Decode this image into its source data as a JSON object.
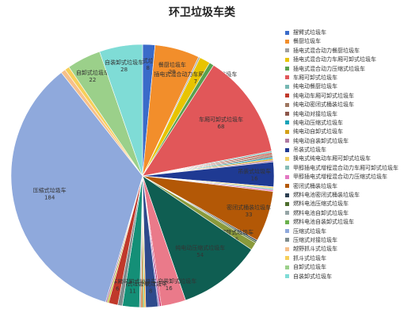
{
  "chart_data": {
    "type": "pie",
    "title": "环卫垃圾车类",
    "legend_position": "right",
    "slices": [
      {
        "name": "摆臂式垃圾车",
        "value": 8,
        "color": "#3a6bc9"
      },
      {
        "name": "餐厨垃圾车",
        "value": 29,
        "color": "#f28e2b"
      },
      {
        "name": "插电式混合动力餐厨垃圾车",
        "value": 1,
        "color": "#a0a0a0"
      },
      {
        "name": "插电式混合动力车厢可卸式垃圾车",
        "value": 7,
        "color": "#e8c400"
      },
      {
        "name": "插电式混合动力压缩式垃圾车",
        "value": 3,
        "color": "#59a14f"
      },
      {
        "name": "车厢可卸式垃圾车",
        "value": 68,
        "color": "#e15759"
      },
      {
        "name": "纯电动餐厨垃圾车",
        "value": 1,
        "color": "#76b7b2"
      },
      {
        "name": "纯电动车厢可卸式垃圾车",
        "value": 1,
        "color": "#c0392b"
      },
      {
        "name": "纯电动密闭式桶装垃圾车",
        "value": 1,
        "color": "#9d7660"
      },
      {
        "name": "纯电动对接垃圾车",
        "value": 1,
        "color": "#8c564b"
      },
      {
        "name": "纯电动压缩式垃圾车",
        "value": 1,
        "color": "#17a2b8"
      },
      {
        "name": "纯电动自卸式垃圾车",
        "value": 1,
        "color": "#d4a017"
      },
      {
        "name": "纯电动自装卸式垃圾车",
        "value": 1,
        "color": "#b07aa1"
      },
      {
        "name": "吊装式垃圾车",
        "value": 16,
        "color": "#1f3a93"
      },
      {
        "name": "换电式纯电动车厢可卸式垃圾车",
        "value": 1,
        "color": "#f1ce63"
      },
      {
        "name": "甲醇插电式增程混合动力车厢可卸式垃圾车",
        "value": 1,
        "color": "#86bcb6"
      },
      {
        "name": "甲醇插电式增程混合动力压缩式垃圾车",
        "value": 1,
        "color": "#e377c2"
      },
      {
        "name": "密闭式桶装垃圾车",
        "value": 33,
        "color": "#b35806"
      },
      {
        "name": "燃料电池密闭式桶装垃圾车",
        "value": 1,
        "color": "#2c3e50"
      },
      {
        "name": "燃料电池压缩式垃圾车",
        "value": 1,
        "color": "#4e6e2e"
      },
      {
        "name": "摆臂式垃圾车",
        "value": 5,
        "color": "#8a9a3b"
      },
      {
        "name": "纯电动压缩式垃圾车",
        "value": 54,
        "color": "#0f5e52"
      },
      {
        "name": "纯电动自装卸式垃圾车",
        "value": 16,
        "color": "#ea7a8a"
      },
      {
        "name": "纯电动自卸式垃圾车",
        "value": 1,
        "color": "#c2185b"
      },
      {
        "name": "车厢可卸式垃圾车",
        "value": 1,
        "color": "#9467bd"
      },
      {
        "name": "压缩式垃圾车",
        "value": 8,
        "color": "#2e4a8c"
      },
      {
        "name": "吊装式垃圾车",
        "value": 1,
        "color": "#f5a623"
      },
      {
        "name": "燃料电池自装卸式垃圾车",
        "value": 1,
        "color": "#6ab04c"
      },
      {
        "name": "燃料电池压缩式垃圾车",
        "value": 1,
        "color": "#d35400"
      },
      {
        "name": "燃料电池自卸式垃圾车",
        "value": 1,
        "color": "#95a5a6"
      },
      {
        "name": "压缩式垃圾车",
        "value": 11,
        "color": "#148f77"
      },
      {
        "name": "压缩式对接垃圾车",
        "value": 3,
        "color": "#7f8c8d"
      },
      {
        "name": "换电式纯电动车厢可卸式垃圾车",
        "value": 6,
        "color": "#c0392b"
      },
      {
        "name": "燃料电池密闭式桶装垃圾车",
        "value": 1,
        "color": "#bcbd22"
      },
      {
        "name": "甲醇插电式增程混合动力压缩式垃圾车",
        "value": 1,
        "color": "#af7aa1"
      },
      {
        "name": "压缩式垃圾车",
        "value": 184,
        "color": "#8fa9dc"
      },
      {
        "name": "越野抓斗式垃圾车",
        "value": 3,
        "color": "#f7c08a"
      },
      {
        "name": "抓斗式垃圾车",
        "value": 3,
        "color": "#f6cf5a"
      },
      {
        "name": "自卸式垃圾车",
        "value": 22,
        "color": "#9bd08a"
      },
      {
        "name": "自装卸式垃圾车",
        "value": 28,
        "color": "#7fdcd6"
      }
    ],
    "legend": [
      {
        "label": "摆臂式垃圾车",
        "color": "#3a6bc9"
      },
      {
        "label": "餐厨垃圾车",
        "color": "#f28e2b"
      },
      {
        "label": "插电式混合动力餐厨垃圾车",
        "color": "#a0a0a0"
      },
      {
        "label": "插电式混合动力车厢可卸式垃圾车",
        "color": "#e8c400"
      },
      {
        "label": "插电式混合动力压缩式垃圾车",
        "color": "#59a14f"
      },
      {
        "label": "车厢可卸式垃圾车",
        "color": "#e15759"
      },
      {
        "label": "纯电动餐厨垃圾车",
        "color": "#76b7b2"
      },
      {
        "label": "纯电动车厢可卸式垃圾车",
        "color": "#c0392b"
      },
      {
        "label": "纯电动密闭式桶装垃圾车",
        "color": "#9d7660"
      },
      {
        "label": "纯电动对接垃圾车",
        "color": "#8c564b"
      },
      {
        "label": "纯电动压缩式垃圾车",
        "color": "#17a2b8"
      },
      {
        "label": "纯电动自卸式垃圾车",
        "color": "#d4a017"
      },
      {
        "label": "纯电动自装卸式垃圾车",
        "color": "#b07aa1"
      },
      {
        "label": "吊装式垃圾车",
        "color": "#1f3a93"
      },
      {
        "label": "换电式纯电动车厢可卸式垃圾车",
        "color": "#f1ce63"
      },
      {
        "label": "甲醇插电式增程混合动力车厢可卸式垃圾车",
        "color": "#86bcb6"
      },
      {
        "label": "甲醇插电式增程混合动力压缩式垃圾车",
        "color": "#e377c2"
      },
      {
        "label": "密闭式桶装垃圾车",
        "color": "#b35806"
      },
      {
        "label": "燃料电池密闭式桶装垃圾车",
        "color": "#2c3e50"
      },
      {
        "label": "燃料电池压缩式垃圾车",
        "color": "#4e6e2e"
      },
      {
        "label": "燃料电池自卸式垃圾车",
        "color": "#95a5a6"
      },
      {
        "label": "燃料电池自装卸式垃圾车",
        "color": "#6ab04c"
      },
      {
        "label": "压缩式垃圾车",
        "color": "#8fa9dc"
      },
      {
        "label": "压缩式对接垃圾车",
        "color": "#7f8c8d"
      },
      {
        "label": "越野抓斗式垃圾车",
        "color": "#f7c08a"
      },
      {
        "label": "抓斗式垃圾车",
        "color": "#f6cf5a"
      },
      {
        "label": "自卸式垃圾车",
        "color": "#9bd08a"
      },
      {
        "label": "自装卸式垃圾车",
        "color": "#7fdcd6"
      }
    ]
  }
}
